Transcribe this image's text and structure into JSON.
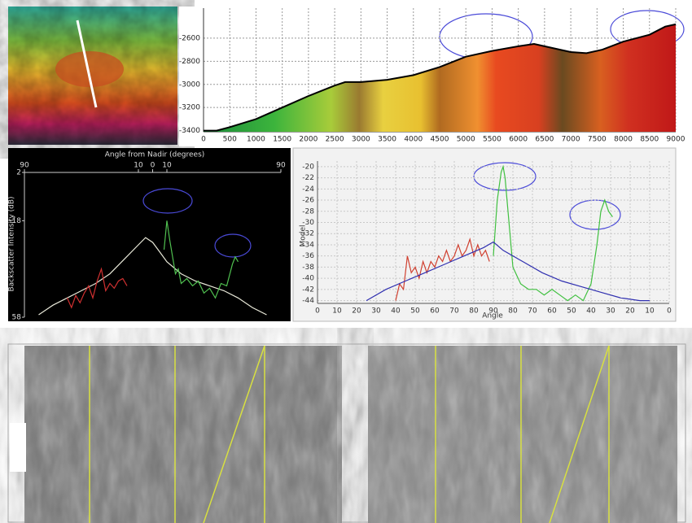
{
  "chart_data": [
    {
      "type": "area",
      "color": "#000000",
      "grid": true,
      "x": [
        0,
        250,
        500,
        1000,
        1500,
        2000,
        2500,
        2700,
        3000,
        3500,
        4000,
        4500,
        5000,
        5500,
        6000,
        6300,
        6500,
        7000,
        7300,
        7600,
        8000,
        8500,
        8800,
        9000
      ],
      "values": [
        -3400,
        -3400,
        -3370,
        -3300,
        -3200,
        -3100,
        -3010,
        -2980,
        -2980,
        -2960,
        -2920,
        -2850,
        -2760,
        -2710,
        -2670,
        -2650,
        -2670,
        -2720,
        -2730,
        -2700,
        -2630,
        -2570,
        -2500,
        -2480
      ],
      "xlim": [
        0,
        9000
      ],
      "ylim": [
        -3410,
        -2340
      ],
      "xticks": [
        0,
        500,
        1000,
        1500,
        2000,
        2500,
        3000,
        3500,
        4000,
        4500,
        5000,
        5500,
        6000,
        6500,
        7000,
        7500,
        8000,
        8500,
        9000
      ],
      "yticks": [
        -3400,
        -3200,
        -3000,
        -2800,
        -2600
      ]
    },
    {
      "type": "line",
      "title": "Angle from Nadir (degrees)",
      "y_label": "Backscatter Intensity (dB)",
      "grid": false,
      "xlim": [
        -90,
        90
      ],
      "ylim": [
        -58,
        2
      ],
      "xticks": [
        {
          "value": -90,
          "label": "90"
        },
        {
          "value": -10,
          "label": "10"
        },
        0,
        10,
        90
      ],
      "yticks": [
        2,
        -18,
        {
          "value": -58,
          "label": "58"
        }
      ],
      "series": [
        {
          "color": "#e8e8d8",
          "x": [
            -80,
            -70,
            -60,
            -50,
            -40,
            -30,
            -20,
            -10,
            -5,
            0,
            5,
            10,
            20,
            30,
            40,
            50,
            60,
            70,
            80
          ],
          "values": [
            -57,
            -53,
            -50,
            -47,
            -44,
            -40,
            -34,
            -28,
            -25,
            -27,
            -31,
            -35,
            -40,
            -43,
            -45,
            -47,
            -50,
            -54,
            -57
          ]
        },
        {
          "color": "#d03030",
          "x": [
            -60,
            -57,
            -54,
            -51,
            -48,
            -45,
            -42,
            -39,
            -36,
            -33,
            -30,
            -27,
            -24,
            -21,
            -18
          ],
          "values": [
            -50,
            -54,
            -49,
            -52,
            -48,
            -45,
            -50,
            -43,
            -38,
            -47,
            -44,
            -46,
            -43,
            -42,
            -45
          ]
        },
        {
          "color": "#50c050",
          "x": [
            8,
            10,
            12,
            14,
            16,
            18,
            20,
            24,
            28,
            32,
            36,
            40,
            44,
            48,
            52,
            56,
            58,
            60
          ],
          "values": [
            -30,
            -18,
            -26,
            -33,
            -40,
            -38,
            -44,
            -42,
            -45,
            -43,
            -48,
            -46,
            -50,
            -44,
            -45,
            -36,
            -33,
            -35
          ]
        }
      ]
    },
    {
      "type": "line",
      "x_label": "Angle",
      "y_label": "Model",
      "grid": true,
      "xlim": [
        0,
        180
      ],
      "ylim": [
        -44.5,
        -19
      ],
      "xticks": [
        0,
        10,
        20,
        30,
        40,
        50,
        60,
        70,
        80,
        90,
        {
          "value": 100,
          "label": "80"
        },
        {
          "value": 110,
          "label": "70"
        },
        {
          "value": 120,
          "label": "60"
        },
        {
          "value": 130,
          "label": "50"
        },
        {
          "value": 140,
          "label": "40"
        },
        {
          "value": 150,
          "label": "30"
        },
        {
          "value": 160,
          "label": "20"
        },
        {
          "value": 170,
          "label": "10"
        },
        {
          "value": 180,
          "label": "0"
        }
      ],
      "yticks": [
        -20,
        -22,
        -24,
        -26,
        -28,
        -30,
        -32,
        -34,
        -36,
        -38,
        -40,
        -42,
        -44
      ],
      "series": [
        {
          "color": "#d04030",
          "x": [
            40,
            42,
            44,
            46,
            48,
            50,
            52,
            54,
            56,
            58,
            60,
            62,
            64,
            66,
            68,
            70,
            72,
            74,
            76,
            78,
            80,
            82,
            84,
            86,
            88
          ],
          "values": [
            -44,
            -41,
            -42,
            -36,
            -39,
            -38,
            -40,
            -37,
            -39,
            -37,
            -38,
            -36,
            -37,
            -35,
            -37,
            -36,
            -34,
            -36,
            -35,
            -33,
            -36,
            -34,
            -36,
            -35,
            -37
          ]
        },
        {
          "color": "#40c040",
          "x": [
            90,
            92,
            94,
            95,
            96,
            98,
            100,
            104,
            108,
            112,
            116,
            120,
            124,
            128,
            132,
            136,
            140,
            143,
            145,
            147,
            149,
            151
          ],
          "values": [
            -36,
            -26,
            -21,
            -20,
            -22,
            -30,
            -38,
            -41,
            -42,
            -42,
            -43,
            -42,
            -43,
            -44,
            -43,
            -44,
            -41,
            -34,
            -28,
            -26,
            -28,
            -29
          ]
        },
        {
          "color": "#3030b0",
          "x": [
            25,
            35,
            45,
            55,
            65,
            75,
            85,
            90,
            95,
            105,
            115,
            125,
            135,
            145,
            155,
            165,
            170
          ],
          "values": [
            -44,
            -42,
            -40.5,
            -39,
            -37.5,
            -36,
            -34.5,
            -33.5,
            -35,
            -37,
            -39,
            -40.5,
            -41.5,
            -42.5,
            -43.5,
            -44,
            -44
          ]
        }
      ]
    }
  ]
}
